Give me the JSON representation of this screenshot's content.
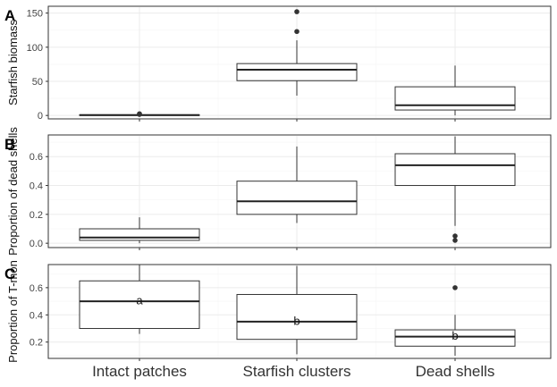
{
  "chart_data": [
    {
      "type": "boxplot",
      "tag": "A",
      "ylabel": "Starfish biomass",
      "ylim": [
        -5,
        160
      ],
      "yticks": [
        0,
        50,
        100,
        150
      ],
      "categories": [
        "Intact patches",
        "Starfish clusters",
        "Dead shells"
      ],
      "boxes": [
        {
          "category": "Intact patches",
          "q1": 0,
          "median": 0.5,
          "q3": 1,
          "whisker_low": 0,
          "whisker_high": 1,
          "outliers": [
            1.5,
            2.5
          ]
        },
        {
          "category": "Starfish clusters",
          "q1": 51,
          "median": 67,
          "q3": 76,
          "whisker_low": 29,
          "whisker_high": 110,
          "outliers": [
            123,
            152
          ]
        },
        {
          "category": "Dead shells",
          "q1": 8,
          "median": 15,
          "q3": 42,
          "whisker_low": 0,
          "whisker_high": 73,
          "outliers": []
        }
      ],
      "letters": []
    },
    {
      "type": "boxplot",
      "tag": "B",
      "ylabel": "Proportion of dead shells",
      "ylim": [
        -0.03,
        0.75
      ],
      "yticks": [
        0.0,
        0.2,
        0.4,
        0.6
      ],
      "categories": [
        "Intact patches",
        "Starfish clusters",
        "Dead shells"
      ],
      "boxes": [
        {
          "category": "Intact patches",
          "q1": 0.02,
          "median": 0.04,
          "q3": 0.1,
          "whisker_low": 0.0,
          "whisker_high": 0.18,
          "outliers": []
        },
        {
          "category": "Starfish clusters",
          "q1": 0.2,
          "median": 0.29,
          "q3": 0.43,
          "whisker_low": 0.14,
          "whisker_high": 0.67,
          "outliers": []
        },
        {
          "category": "Dead shells",
          "q1": 0.4,
          "median": 0.54,
          "q3": 0.62,
          "whisker_low": 0.12,
          "whisker_high": 0.74,
          "outliers": [
            0.02,
            0.05
          ]
        }
      ],
      "letters": []
    },
    {
      "type": "boxplot",
      "tag": "C",
      "ylabel": "Proportion of T-mon",
      "ylim": [
        0.08,
        0.77
      ],
      "yticks": [
        0.2,
        0.4,
        0.6
      ],
      "categories": [
        "Intact patches",
        "Starfish clusters",
        "Dead shells"
      ],
      "boxes": [
        {
          "category": "Intact patches",
          "q1": 0.3,
          "median": 0.5,
          "q3": 0.65,
          "whisker_low": 0.26,
          "whisker_high": 0.77,
          "outliers": []
        },
        {
          "category": "Starfish clusters",
          "q1": 0.22,
          "median": 0.35,
          "q3": 0.55,
          "whisker_low": 0.11,
          "whisker_high": 0.76,
          "outliers": []
        },
        {
          "category": "Dead shells",
          "q1": 0.17,
          "median": 0.24,
          "q3": 0.29,
          "whisker_low": 0.1,
          "whisker_high": 0.4,
          "outliers": [
            0.6
          ]
        }
      ],
      "letters": [
        {
          "category": "Intact patches",
          "text": "a",
          "y": 0.51
        },
        {
          "category": "Starfish clusters",
          "text": "b",
          "y": 0.36
        },
        {
          "category": "Dead shells",
          "text": "b",
          "y": 0.25
        }
      ]
    }
  ]
}
